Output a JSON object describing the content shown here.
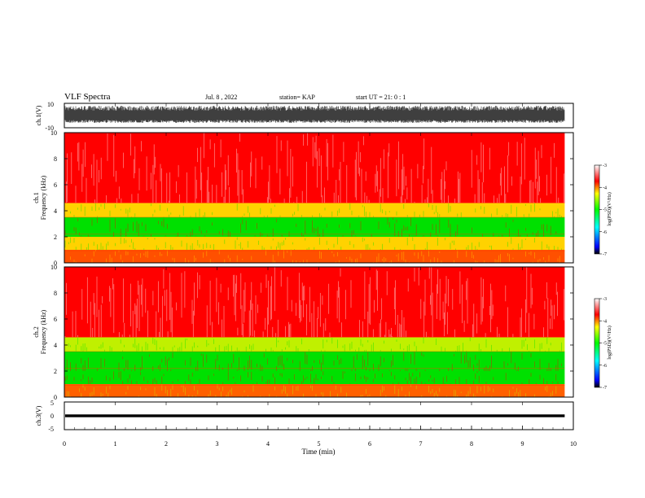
{
  "header": {
    "title": "VLF Spectra",
    "date": "Jul. 8 , 2022",
    "station": "station= KAP",
    "start": "start UT = 21: 0 : 1"
  },
  "colors": {
    "waveform": "#000000",
    "spectrum_ch1": [
      "#ff0000",
      "#ff5000",
      "#ffd200",
      "#00e000"
    ],
    "spectrum_ch2": [
      "#ff0000",
      "#ff6000",
      "#c0f000",
      "#00e000"
    ],
    "colorbar": [
      "#000000",
      "#0000ff",
      "#00ffff",
      "#00ff00",
      "#ffff00",
      "#ff0000",
      "#ffffff"
    ]
  },
  "chart_data": [
    {
      "type": "line",
      "name": "ch1 waveform",
      "ylabel": "ch.1(V)",
      "ylim": [
        -10,
        10
      ],
      "yticks": [
        "10",
        "-10"
      ],
      "xlim": [
        0,
        10
      ],
      "x_data_end": 9.83,
      "envelope": [
        -6,
        8
      ]
    },
    {
      "type": "heatmap",
      "name": "ch1 spectrogram",
      "ylabel": "Frequency (kHz)",
      "ylabel2": "ch.1",
      "ylim": [
        0,
        10
      ],
      "yticks": [
        "0",
        "2",
        "4",
        "6",
        "8",
        "10"
      ],
      "xlim": [
        0,
        10
      ],
      "x_data_end": 9.83,
      "bands_khz": [
        {
          "from": 0,
          "to": 1,
          "level": -4
        },
        {
          "from": 1,
          "to": 2,
          "level": -4.6
        },
        {
          "from": 2,
          "to": 3.5,
          "level": -5
        },
        {
          "from": 3.5,
          "to": 4.6,
          "level": -4.4
        },
        {
          "from": 4.6,
          "to": 10,
          "level": -3.3
        }
      ],
      "colorbar": {
        "label": "log(PSD)(V²/Hz)",
        "ticks": [
          "-3",
          "-4",
          "-5",
          "-6",
          "-7"
        ],
        "range": [
          -7,
          -3
        ]
      }
    },
    {
      "type": "heatmap",
      "name": "ch2 spectrogram",
      "ylabel": "Frequency (kHz)",
      "ylabel2": "ch.2",
      "ylim": [
        0,
        10
      ],
      "yticks": [
        "0",
        "2",
        "4",
        "6",
        "8",
        "10"
      ],
      "xlim": [
        0,
        10
      ],
      "x_data_end": 9.83,
      "bands_khz": [
        {
          "from": 0,
          "to": 1,
          "level": -4.2
        },
        {
          "from": 1,
          "to": 2,
          "level": -4.8
        },
        {
          "from": 2,
          "to": 3.5,
          "level": -5.2
        },
        {
          "from": 3.5,
          "to": 4.6,
          "level": -4.5
        },
        {
          "from": 4.6,
          "to": 10,
          "level": -3.3
        }
      ],
      "colorbar": {
        "label": "log(PSD)(V²/Hz)",
        "ticks": [
          "-3",
          "-4",
          "-5",
          "-6",
          "-7"
        ],
        "range": [
          -7,
          -3
        ]
      }
    },
    {
      "type": "line",
      "name": "ch3 waveform",
      "ylabel": "ch.3(V)",
      "ylim": [
        -5,
        5
      ],
      "yticks": [
        "5",
        "0",
        "-5"
      ],
      "xlim": [
        0,
        10
      ],
      "x_data_end": 9.83,
      "envelope": [
        -0.5,
        0.5
      ],
      "xlabel": "Time (min)",
      "xticks": [
        "0",
        "1",
        "2",
        "3",
        "4",
        "5",
        "6",
        "7",
        "8",
        "9",
        "10"
      ]
    }
  ]
}
